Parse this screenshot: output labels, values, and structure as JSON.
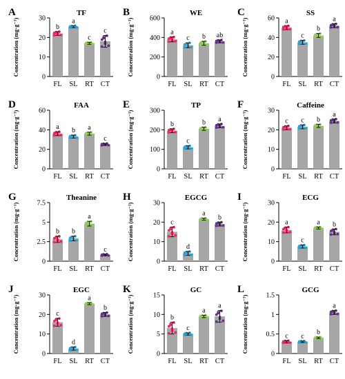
{
  "figure": {
    "ylabel": "Concentration (mg·g⁻¹)",
    "categories": [
      "FL",
      "SL",
      "RT",
      "CT"
    ],
    "bar_color": "#a6a6a6",
    "point_colors": [
      "#ff1f5a",
      "#1ea7d8",
      "#8fd14a",
      "#6a2d8f"
    ]
  },
  "chart_data": [
    {
      "type": "bar",
      "letter": "A",
      "title": "TF",
      "categories": [
        "FL",
        "SL",
        "RT",
        "CT"
      ],
      "values": [
        22,
        25.5,
        17,
        18
      ],
      "errors": [
        1,
        0.5,
        0.5,
        3
      ],
      "sig": [
        "b",
        "a",
        "c",
        "c"
      ],
      "ylim": [
        0,
        30
      ],
      "yticks": [
        "0",
        "10",
        "20",
        "30"
      ],
      "ytick_values": [
        0,
        10,
        20,
        30
      ]
    },
    {
      "type": "bar",
      "letter": "B",
      "title": "WE",
      "categories": [
        "FL",
        "SL",
        "RT",
        "CT"
      ],
      "values": [
        380,
        320,
        340,
        360
      ],
      "errors": [
        25,
        25,
        20,
        15
      ],
      "sig": [
        "a",
        "c",
        "b",
        "ab"
      ],
      "ylim": [
        0,
        600
      ],
      "yticks": [
        "0",
        "200",
        "400",
        "600"
      ],
      "ytick_values": [
        0,
        200,
        400,
        600
      ]
    },
    {
      "type": "bar",
      "letter": "C",
      "title": "SS",
      "categories": [
        "FL",
        "SL",
        "RT",
        "CT"
      ],
      "values": [
        50,
        35,
        42,
        52
      ],
      "errors": [
        2,
        2,
        2,
        2
      ],
      "sig": [
        "a",
        "c",
        "b",
        "a"
      ],
      "ylim": [
        0,
        60
      ],
      "yticks": [
        "0",
        "20",
        "40",
        "60"
      ],
      "ytick_values": [
        0,
        20,
        40,
        60
      ]
    },
    {
      "type": "bar",
      "letter": "D",
      "title": "FAA",
      "categories": [
        "FL",
        "SL",
        "RT",
        "CT"
      ],
      "values": [
        36,
        33,
        36,
        25
      ],
      "errors": [
        2,
        1.5,
        1.5,
        1
      ],
      "sig": [
        "a",
        "b",
        "a",
        "c"
      ],
      "ylim": [
        0,
        60
      ],
      "yticks": [
        "0",
        "20",
        "40",
        "60"
      ],
      "ytick_values": [
        0,
        20,
        40,
        60
      ]
    },
    {
      "type": "bar",
      "letter": "E",
      "title": "TP",
      "categories": [
        "FL",
        "SL",
        "RT",
        "CT"
      ],
      "values": [
        195,
        110,
        205,
        220
      ],
      "errors": [
        10,
        8,
        8,
        10
      ],
      "sig": [
        "b",
        "c",
        "b",
        "a"
      ],
      "ylim": [
        0,
        300
      ],
      "yticks": [
        "0",
        "100",
        "200",
        "300"
      ],
      "ytick_values": [
        0,
        100,
        200,
        300
      ]
    },
    {
      "type": "bar",
      "letter": "F",
      "title": "Caffeine",
      "categories": [
        "FL",
        "SL",
        "RT",
        "CT"
      ],
      "values": [
        21,
        21.5,
        22,
        24.5
      ],
      "errors": [
        1,
        1,
        0.8,
        1
      ],
      "sig": [
        "c",
        "c",
        "b",
        "a"
      ],
      "ylim": [
        0,
        30
      ],
      "yticks": [
        "0",
        "10",
        "20",
        "30"
      ],
      "ytick_values": [
        0,
        10,
        20,
        30
      ]
    },
    {
      "type": "bar",
      "letter": "G",
      "title": "Theanine",
      "categories": [
        "FL",
        "SL",
        "RT",
        "CT"
      ],
      "values": [
        2.8,
        2.9,
        4.8,
        0.8
      ],
      "errors": [
        0.4,
        0.3,
        0.3,
        0.1
      ],
      "sig": [
        "b",
        "b",
        "a",
        "c"
      ],
      "ylim": [
        0,
        7.5
      ],
      "yticks": [
        "0",
        "2.5",
        "5",
        "7.5"
      ],
      "ytick_values": [
        0,
        2.5,
        5,
        7.5
      ]
    },
    {
      "type": "bar",
      "letter": "H",
      "title": "EGCG",
      "categories": [
        "FL",
        "SL",
        "RT",
        "CT"
      ],
      "values": [
        15,
        4,
        21.5,
        19
      ],
      "errors": [
        2.5,
        1,
        0.5,
        1
      ],
      "sig": [
        "c",
        "d",
        "a",
        "b"
      ],
      "ylim": [
        0,
        30
      ],
      "yticks": [
        "0",
        "10",
        "20",
        "30"
      ],
      "ytick_values": [
        0,
        10,
        20,
        30
      ]
    },
    {
      "type": "bar",
      "letter": "I",
      "title": "ECG",
      "categories": [
        "FL",
        "SL",
        "RT",
        "CT"
      ],
      "values": [
        16,
        7.5,
        17,
        15
      ],
      "errors": [
        1.5,
        0.8,
        0.5,
        1.5
      ],
      "sig": [
        "a",
        "c",
        "a",
        "b"
      ],
      "ylim": [
        0,
        30
      ],
      "yticks": [
        "0",
        "10",
        "20",
        "30"
      ],
      "ytick_values": [
        0,
        10,
        20,
        30
      ]
    },
    {
      "type": "bar",
      "letter": "J",
      "title": "EGC",
      "categories": [
        "FL",
        "SL",
        "RT",
        "CT"
      ],
      "values": [
        16,
        2.5,
        25.5,
        20
      ],
      "errors": [
        2,
        0.8,
        0.5,
        1
      ],
      "sig": [
        "c",
        "d",
        "a",
        "b"
      ],
      "ylim": [
        0,
        30
      ],
      "yticks": [
        "0",
        "10",
        "20",
        "30"
      ],
      "ytick_values": [
        0,
        10,
        20,
        30
      ]
    },
    {
      "type": "bar",
      "letter": "K",
      "title": "GC",
      "categories": [
        "FL",
        "SL",
        "RT",
        "CT"
      ],
      "values": [
        6.5,
        5,
        9.5,
        9.5
      ],
      "errors": [
        1.5,
        0.3,
        0.3,
        1.5
      ],
      "sig": [
        "b",
        "c",
        "a",
        "a"
      ],
      "ylim": [
        0,
        15
      ],
      "yticks": [
        "0",
        "5",
        "10",
        "15"
      ],
      "ytick_values": [
        0,
        5,
        10,
        15
      ]
    },
    {
      "type": "bar",
      "letter": "L",
      "title": "GCG",
      "categories": [
        "FL",
        "SL",
        "RT",
        "CT"
      ],
      "values": [
        0.3,
        0.3,
        0.4,
        1.05
      ],
      "errors": [
        0.03,
        0.02,
        0.02,
        0.05
      ],
      "sig": [
        "c",
        "c",
        "b",
        "a"
      ],
      "ylim": [
        0,
        1.5
      ],
      "yticks": [
        "0",
        "0.5",
        "1",
        "1.5"
      ],
      "ytick_values": [
        0,
        0.5,
        1,
        1.5
      ]
    }
  ]
}
